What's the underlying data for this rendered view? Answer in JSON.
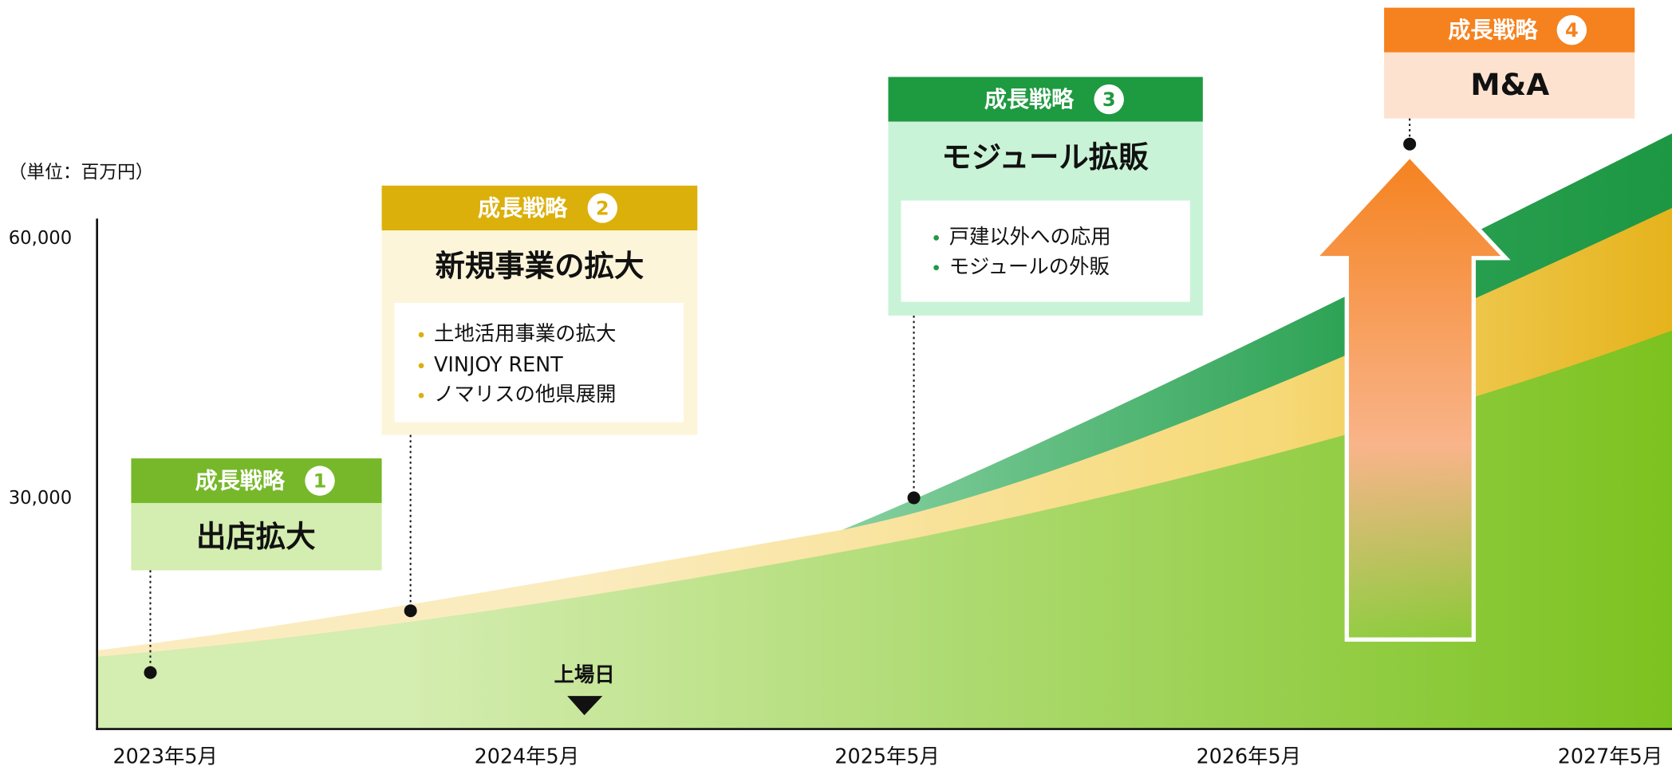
{
  "unit": "（単位：百万円）",
  "chart_data": {
    "type": "area",
    "categories": [
      "2023年5月",
      "2024年5月",
      "2025年5月",
      "2026年5月",
      "2027年5月"
    ],
    "ylim": [
      3400,
      62300
    ],
    "yticks": [
      {
        "value": 30000,
        "label": "30,000"
      },
      {
        "value": 60000,
        "label": "60,000"
      }
    ]
  },
  "listing": "上場日",
  "strategies": [
    {
      "header": "成長戦略",
      "number": "1",
      "title": "出店拡大",
      "items": []
    },
    {
      "header": "成長戦略",
      "number": "2",
      "title": "新規事業の拡大",
      "items": [
        "土地活用事業の拡大",
        "VINJOY RENT",
        "ノマリスの他県展開"
      ]
    },
    {
      "header": "成長戦略",
      "number": "3",
      "title": "モジュール拡販",
      "items": [
        "戸建以外への応用",
        "モジュールの外販"
      ]
    },
    {
      "header": "成長戦略",
      "number": "4",
      "title": "M&A",
      "items": []
    }
  ]
}
